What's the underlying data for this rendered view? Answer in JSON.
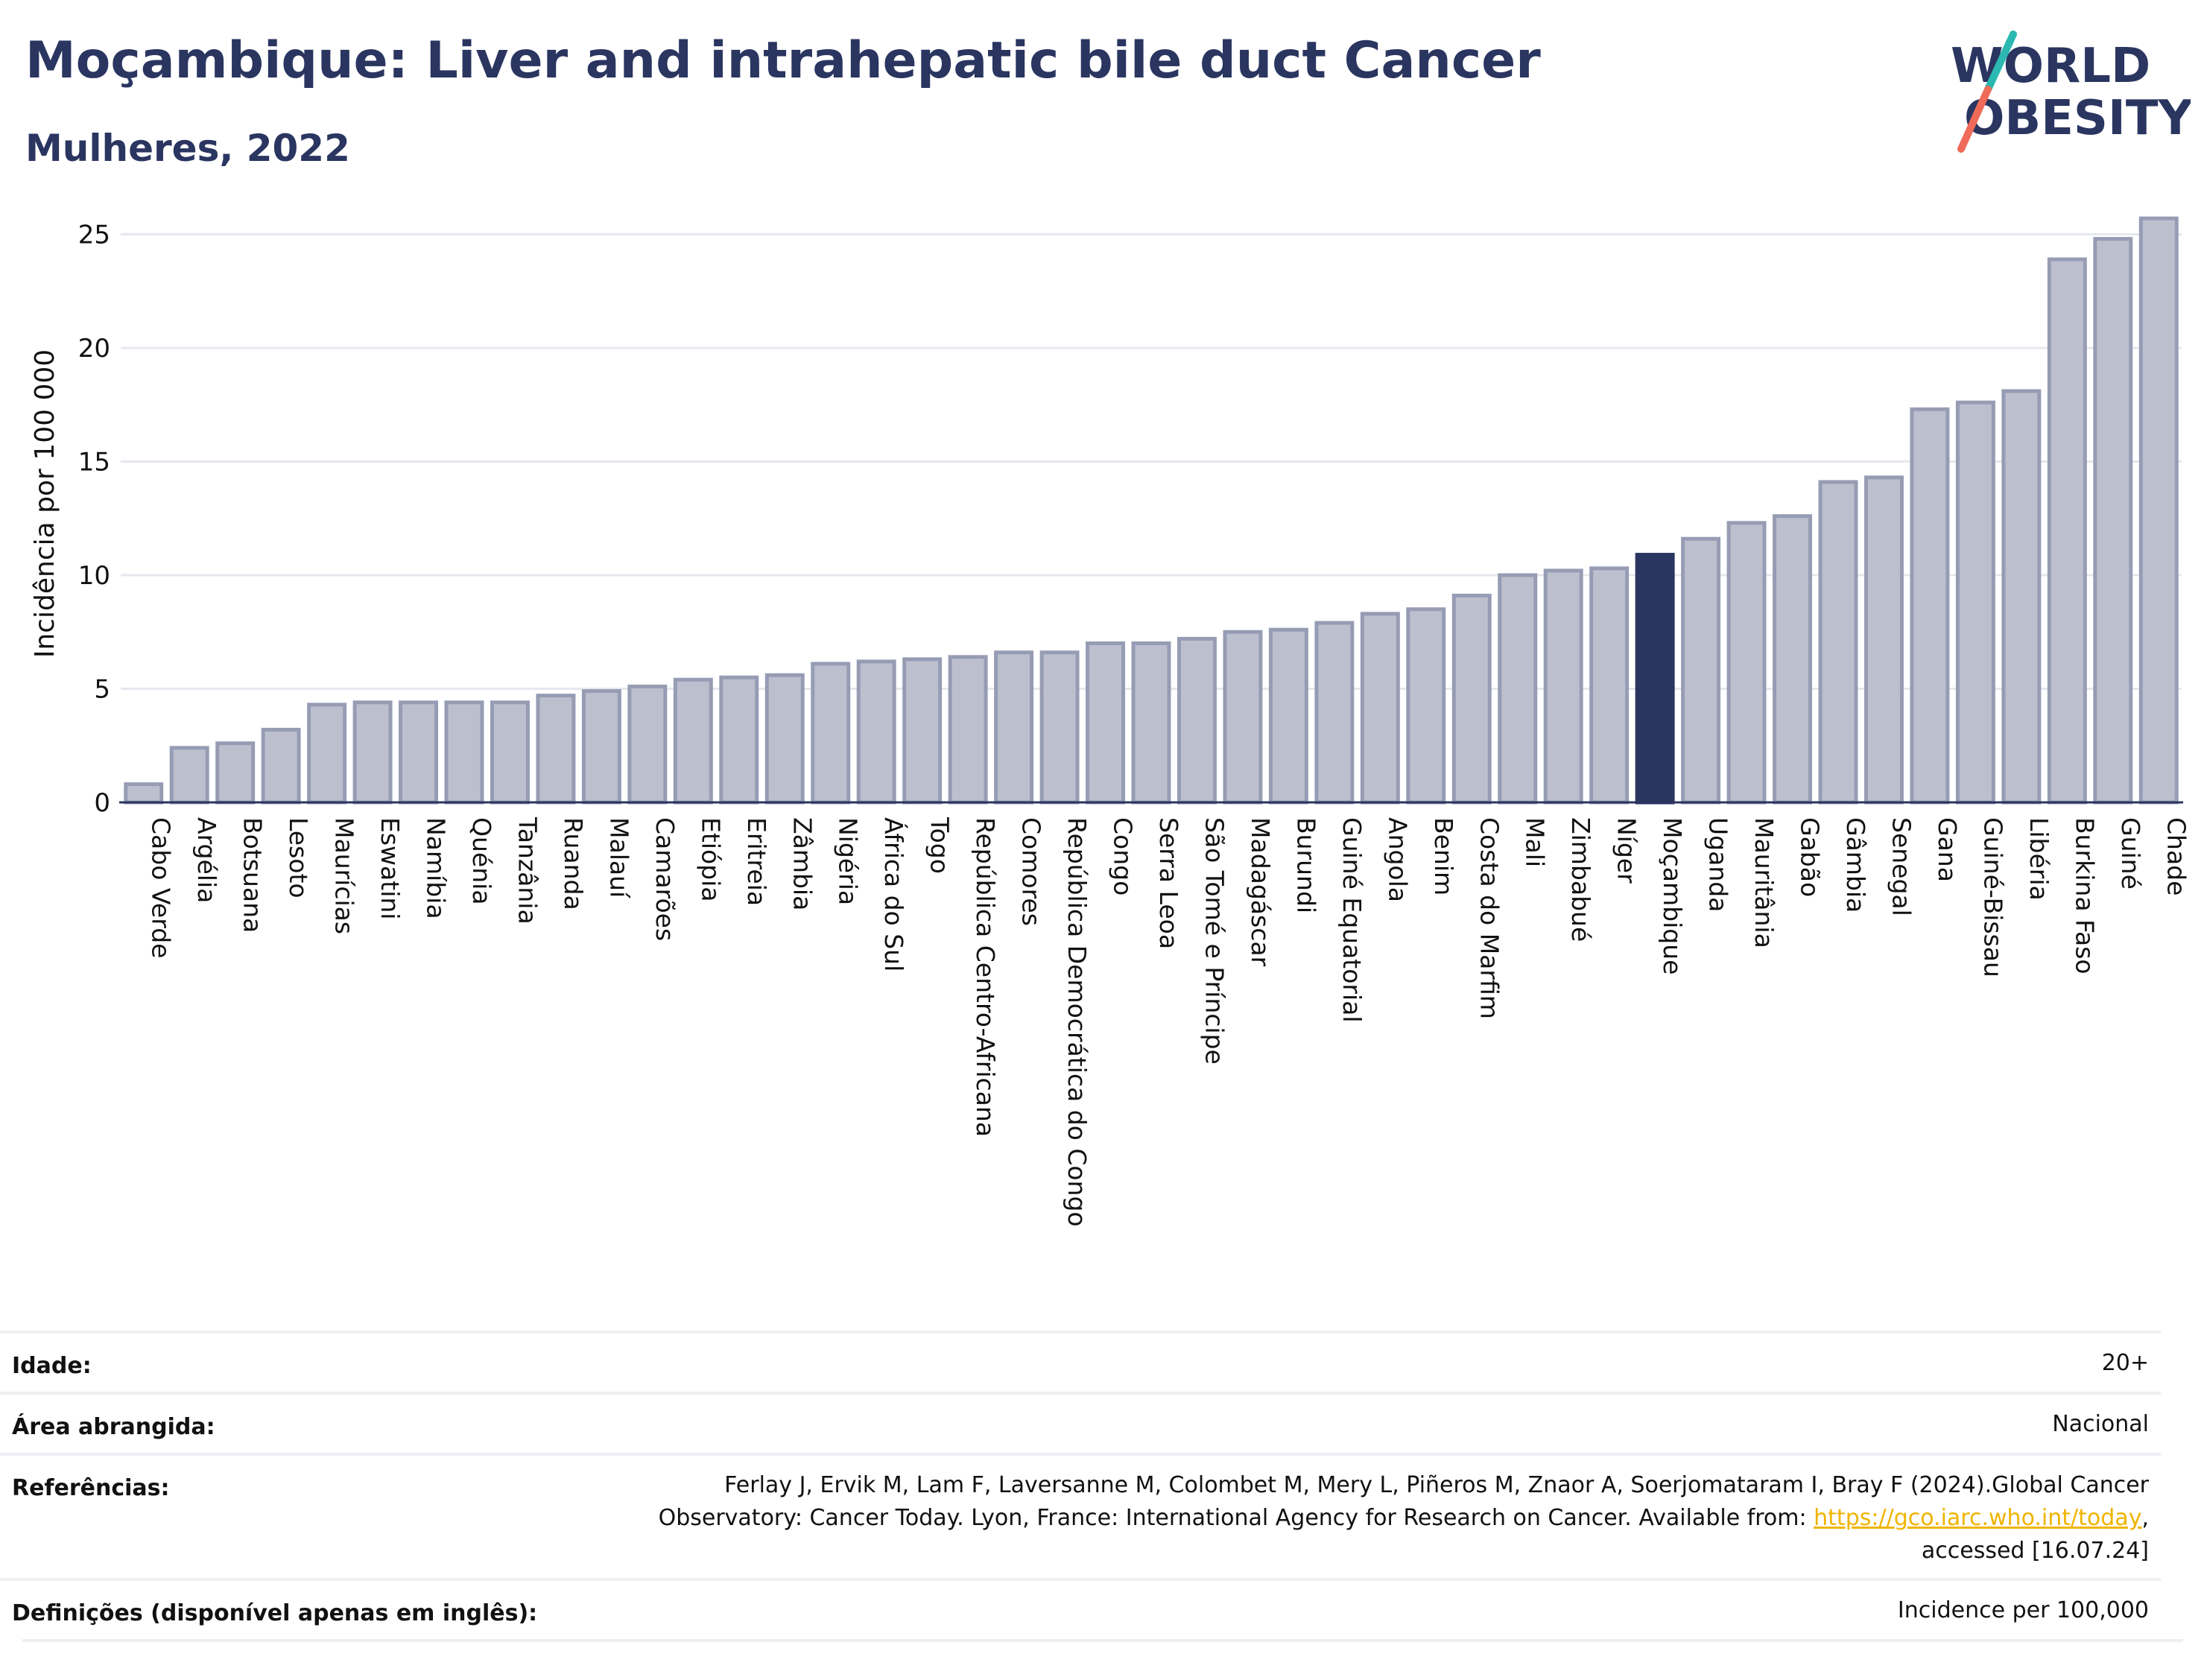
{
  "header": {
    "title": "Moçambique: Liver and intrahepatic bile duct Cancer",
    "subtitle": "Mulheres, 2022"
  },
  "logo": {
    "line1": "WORLD",
    "line2": "OBESITY",
    "colors": {
      "text": "#2a3560",
      "slash_top": "#2ab8b0",
      "slash_bottom": "#f06a5a"
    }
  },
  "chart_data": {
    "type": "bar",
    "ylabel": "Incidência por 100 000",
    "ylim": [
      0,
      26
    ],
    "yticks": [
      0,
      5,
      10,
      15,
      20,
      25
    ],
    "highlight": "Moçambique",
    "colors": {
      "bar": "#bcc0ce",
      "bar_edge": "#969cb4",
      "highlight": "#2a3560",
      "grid": "#e6e8ee"
    },
    "categories": [
      "Cabo Verde",
      "Argélia",
      "Botsuana",
      "Lesoto",
      "Maurícias",
      "Eswatini",
      "Namíbia",
      "Quénia",
      "Tanzânia",
      "Ruanda",
      "Malauí",
      "Camarões",
      "Etiópia",
      "Eritreia",
      "Zâmbia",
      "Nigéria",
      "África do Sul",
      "Togo",
      "República Centro-Africana",
      "Comores",
      "República Democrática do Congo",
      "Congo",
      "Serra Leoa",
      "São Tomé e Príncipe",
      "Madagáscar",
      "Burundi",
      "Guiné Equatorial",
      "Angola",
      "Benim",
      "Costa do Marfim",
      "Mali",
      "Zimbabué",
      "Níger",
      "Moçambique",
      "Uganda",
      "Mauritânia",
      "Gabão",
      "Gâmbia",
      "Senegal",
      "Gana",
      "Guiné-Bissau",
      "Libéria",
      "Burkina Faso",
      "Guiné",
      "Chade"
    ],
    "values": [
      0.8,
      2.4,
      2.6,
      3.2,
      4.3,
      4.4,
      4.4,
      4.4,
      4.4,
      4.7,
      4.9,
      5.1,
      5.4,
      5.5,
      5.6,
      6.1,
      6.2,
      6.3,
      6.4,
      6.6,
      6.6,
      7.0,
      7.0,
      7.2,
      7.5,
      7.6,
      7.9,
      8.3,
      8.5,
      9.1,
      10.0,
      10.2,
      10.3,
      10.9,
      11.6,
      12.3,
      12.6,
      14.1,
      14.3,
      17.3,
      17.6,
      18.1,
      23.9,
      24.8,
      25.7
    ]
  },
  "info": {
    "age_label": "Idade:",
    "age_value": "20+",
    "area_label": "Área abrangida:",
    "area_value": "Nacional",
    "ref_label": "Referências:",
    "ref_line1": "Ferlay J, Ervik M, Lam F, Laversanne M, Colombet M, Mery L, Piñeros M, Znaor A, Soerjomataram I, Bray F (2024).Global Cancer",
    "ref_line2_pre": "Observatory: Cancer Today. Lyon, France: International Agency for Research on Cancer. Available from: ",
    "ref_link": "https://gco.iarc.who.int/today",
    "ref_line2_post": ",",
    "ref_line3": "accessed [16.07.24]",
    "def_label": "Definições (disponível apenas em inglês):",
    "def_value": "Incidence per 100,000"
  }
}
